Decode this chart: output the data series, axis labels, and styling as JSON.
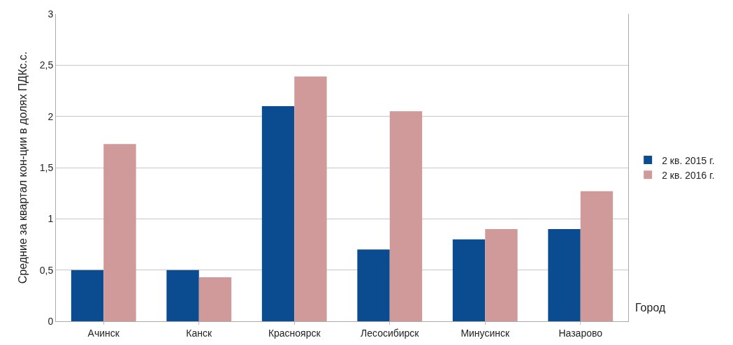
{
  "chart_data": {
    "type": "bar",
    "xlabel": "Город",
    "ylabel": "Средние за квартал кон-ции в долях ПДКс.с.",
    "categories": [
      "Ачинск",
      "Канск",
      "Красноярск",
      "Лесосибирск",
      "Минусинск",
      "Назарово"
    ],
    "series": [
      {
        "name": "2 кв. 2015 г.",
        "color": "#0b4b8f",
        "values": [
          0.5,
          0.5,
          2.1,
          0.7,
          0.8,
          0.9
        ]
      },
      {
        "name": "2 кв. 2016 г.",
        "color": "#d09a9a",
        "values": [
          1.73,
          0.43,
          2.39,
          2.05,
          0.9,
          1.27
        ]
      }
    ],
    "ylim": [
      0,
      3
    ],
    "yticks": [
      0,
      {
        "value": 0.5,
        "label": "0,5"
      },
      1,
      {
        "value": 1.5,
        "label": "1,5"
      },
      2,
      {
        "value": 2.5,
        "label": "2,5"
      },
      3
    ],
    "grid": "y",
    "legend": "right"
  }
}
